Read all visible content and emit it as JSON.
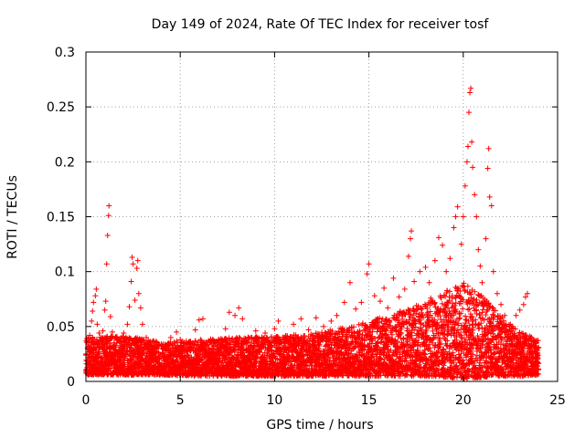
{
  "chart_data": {
    "type": "scatter",
    "title": "Day 149 of 2024, Rate Of TEC Index for receiver tosf",
    "xlabel": "GPS time / hours",
    "ylabel": "ROTI / TECUs",
    "xlim": [
      0,
      25
    ],
    "ylim": [
      0,
      0.3
    ],
    "x_ticks": [
      0,
      5,
      10,
      15,
      20,
      25
    ],
    "y_ticks": [
      0,
      0.05,
      0.1,
      0.15,
      0.2,
      0.25,
      0.3
    ],
    "x_tick_labels": [
      "0",
      "5",
      "10",
      "15",
      "20",
      "25"
    ],
    "y_tick_labels": [
      "0",
      "0.05",
      "0.1",
      "0.15",
      "0.2",
      "0.25",
      "0.3"
    ],
    "grid": true,
    "marker": "+",
    "color": "#ff0000",
    "series": [
      {
        "name": "ROTI",
        "points": [
          [
            0.0,
            0.024
          ],
          [
            0.1,
            0.03
          ],
          [
            0.2,
            0.042
          ],
          [
            0.3,
            0.055
          ],
          [
            0.35,
            0.064
          ],
          [
            0.4,
            0.072
          ],
          [
            0.5,
            0.078
          ],
          [
            0.55,
            0.084
          ],
          [
            0.6,
            0.052
          ],
          [
            0.7,
            0.044
          ],
          [
            0.8,
            0.038
          ],
          [
            0.9,
            0.046
          ],
          [
            1.0,
            0.065
          ],
          [
            1.05,
            0.073
          ],
          [
            1.1,
            0.107
          ],
          [
            1.15,
            0.133
          ],
          [
            1.2,
            0.151
          ],
          [
            1.22,
            0.16
          ],
          [
            1.3,
            0.059
          ],
          [
            1.4,
            0.045
          ],
          [
            1.6,
            0.04
          ],
          [
            1.8,
            0.036
          ],
          [
            2.0,
            0.044
          ],
          [
            2.2,
            0.052
          ],
          [
            2.3,
            0.068
          ],
          [
            2.4,
            0.091
          ],
          [
            2.45,
            0.113
          ],
          [
            2.5,
            0.107
          ],
          [
            2.6,
            0.074
          ],
          [
            2.7,
            0.103
          ],
          [
            2.75,
            0.11
          ],
          [
            2.8,
            0.08
          ],
          [
            2.9,
            0.067
          ],
          [
            3.0,
            0.052
          ],
          [
            3.2,
            0.04
          ],
          [
            3.5,
            0.036
          ],
          [
            4.0,
            0.034
          ],
          [
            4.5,
            0.04
          ],
          [
            4.8,
            0.045
          ],
          [
            5.0,
            0.038
          ],
          [
            5.5,
            0.035
          ],
          [
            5.8,
            0.047
          ],
          [
            6.0,
            0.056
          ],
          [
            6.2,
            0.057
          ],
          [
            6.5,
            0.037
          ],
          [
            7.0,
            0.035
          ],
          [
            7.4,
            0.048
          ],
          [
            7.6,
            0.063
          ],
          [
            7.9,
            0.06
          ],
          [
            8.1,
            0.067
          ],
          [
            8.3,
            0.057
          ],
          [
            8.6,
            0.04
          ],
          [
            9.0,
            0.046
          ],
          [
            9.5,
            0.044
          ],
          [
            10.0,
            0.048
          ],
          [
            10.2,
            0.055
          ],
          [
            10.5,
            0.04
          ],
          [
            11.0,
            0.052
          ],
          [
            11.4,
            0.057
          ],
          [
            11.8,
            0.047
          ],
          [
            12.2,
            0.058
          ],
          [
            12.6,
            0.05
          ],
          [
            13.0,
            0.055
          ],
          [
            13.3,
            0.06
          ],
          [
            13.7,
            0.072
          ],
          [
            14.0,
            0.09
          ],
          [
            14.3,
            0.066
          ],
          [
            14.6,
            0.072
          ],
          [
            14.9,
            0.098
          ],
          [
            15.0,
            0.107
          ],
          [
            15.3,
            0.078
          ],
          [
            15.6,
            0.073
          ],
          [
            15.8,
            0.085
          ],
          [
            16.0,
            0.067
          ],
          [
            16.3,
            0.094
          ],
          [
            16.6,
            0.077
          ],
          [
            16.9,
            0.084
          ],
          [
            17.1,
            0.114
          ],
          [
            17.2,
            0.13
          ],
          [
            17.25,
            0.137
          ],
          [
            17.4,
            0.091
          ],
          [
            17.7,
            0.1
          ],
          [
            18.0,
            0.104
          ],
          [
            18.2,
            0.09
          ],
          [
            18.5,
            0.11
          ],
          [
            18.7,
            0.131
          ],
          [
            18.9,
            0.124
          ],
          [
            19.1,
            0.1
          ],
          [
            19.3,
            0.112
          ],
          [
            19.5,
            0.14
          ],
          [
            19.6,
            0.15
          ],
          [
            19.7,
            0.159
          ],
          [
            19.9,
            0.125
          ],
          [
            20.0,
            0.15
          ],
          [
            20.1,
            0.178
          ],
          [
            20.2,
            0.2
          ],
          [
            20.25,
            0.214
          ],
          [
            20.3,
            0.245
          ],
          [
            20.35,
            0.263
          ],
          [
            20.4,
            0.267
          ],
          [
            20.45,
            0.218
          ],
          [
            20.5,
            0.195
          ],
          [
            20.6,
            0.17
          ],
          [
            20.7,
            0.15
          ],
          [
            20.8,
            0.12
          ],
          [
            20.9,
            0.105
          ],
          [
            21.0,
            0.09
          ],
          [
            21.2,
            0.13
          ],
          [
            21.3,
            0.194
          ],
          [
            21.35,
            0.212
          ],
          [
            21.4,
            0.168
          ],
          [
            21.5,
            0.16
          ],
          [
            21.6,
            0.1
          ],
          [
            21.8,
            0.08
          ],
          [
            22.0,
            0.07
          ],
          [
            22.2,
            0.06
          ],
          [
            22.5,
            0.052
          ],
          [
            22.8,
            0.06
          ],
          [
            23.0,
            0.065
          ],
          [
            23.2,
            0.07
          ],
          [
            23.3,
            0.077
          ],
          [
            23.4,
            0.08
          ],
          [
            23.6,
            0.04
          ],
          [
            23.8,
            0.036
          ],
          [
            24.0,
            0.031
          ]
        ],
        "baseline_envelope": {
          "x": [
            0,
            2,
            4,
            6,
            8,
            10,
            12,
            14,
            16,
            17,
            18,
            19,
            20,
            21,
            22,
            23,
            24
          ],
          "min": [
            0.006,
            0.006,
            0.006,
            0.005,
            0.005,
            0.005,
            0.005,
            0.005,
            0.005,
            0.005,
            0.005,
            0.004,
            0.002,
            0.004,
            0.005,
            0.005,
            0.006
          ],
          "max": [
            0.04,
            0.042,
            0.036,
            0.038,
            0.04,
            0.041,
            0.044,
            0.05,
            0.06,
            0.066,
            0.074,
            0.082,
            0.09,
            0.078,
            0.06,
            0.045,
            0.038
          ]
        }
      }
    ]
  }
}
